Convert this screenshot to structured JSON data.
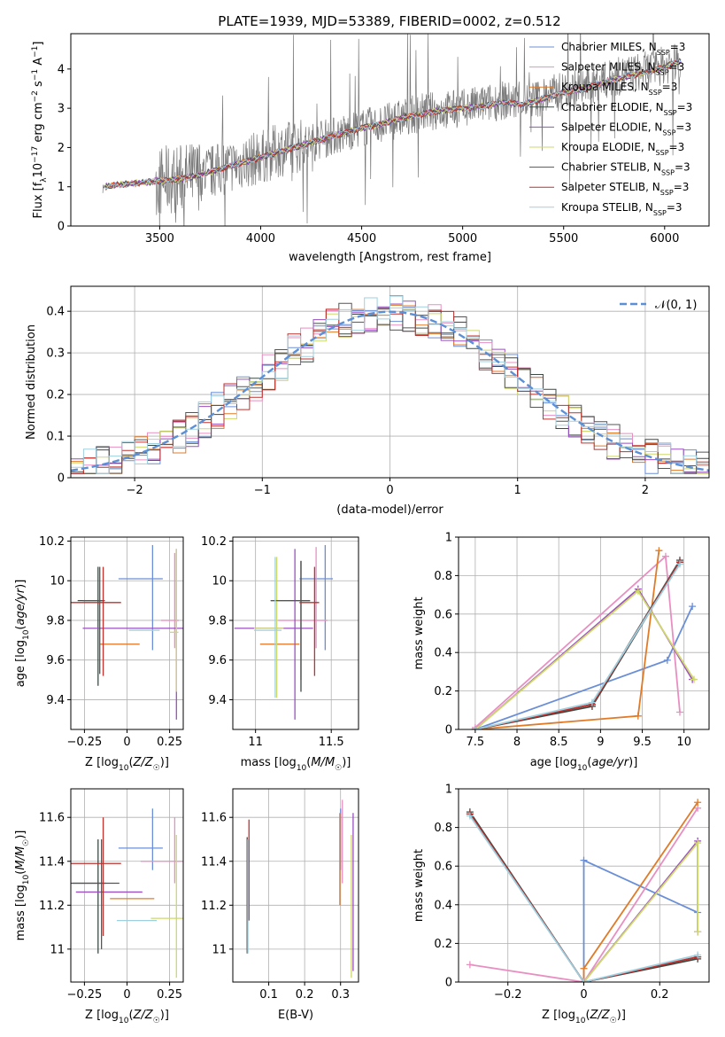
{
  "figure": {
    "title": "PLATE=1939, MJD=53389, FIBERID=0002, z=0.512",
    "series_colors": [
      "#6b8fd6",
      "#e88fc2",
      "#e07b28",
      "#3d4a44",
      "#9b4fc1",
      "#cfd86a",
      "#555555",
      "#c0302c",
      "#9fd0e0"
    ],
    "series_labels": [
      [
        "Chabrier MILES, N",
        "SSP",
        "=3"
      ],
      [
        "Salpeter MILES, N",
        "SSP",
        "=3"
      ],
      [
        "Kroupa MILES, N",
        "SSP",
        "=3"
      ],
      [
        "Chabrier ELODIE, N",
        "SSP",
        "=3"
      ],
      [
        "Salpeter ELODIE, N",
        "SSP",
        "=3"
      ],
      [
        "Kroupa ELODIE, N",
        "SSP",
        "=3"
      ],
      [
        "Chabrier STELIB, N",
        "SSP",
        "=3"
      ],
      [
        "Salpeter STELIB, N",
        "SSP",
        "=3"
      ],
      [
        "Kroupa STELIB, N",
        "SSP",
        "=3"
      ]
    ]
  },
  "chart_data": [
    {
      "id": "spectrum",
      "type": "line",
      "title": "PLATE=1939, MJD=53389, FIBERID=0002, z=0.512",
      "xlabel": "wavelength [Angstrom, rest frame]",
      "ylabel": "Flux [f_λ 10^-17 erg cm^-2 s^-1 A^-1]",
      "xlim": [
        3060,
        6220
      ],
      "ylim": [
        0,
        4.9
      ],
      "xticks": [
        3500,
        4000,
        4500,
        5000,
        5500,
        6000
      ],
      "yticks": [
        0,
        1,
        2,
        3,
        4
      ],
      "grid": false,
      "legend": "upper-right",
      "data_profile": {
        "x": [
          3200,
          3220,
          3300,
          3400,
          3500,
          3600,
          3700,
          3800,
          3900,
          4000,
          4100,
          4200,
          4300,
          4400,
          4500,
          4600,
          4700,
          4800,
          4900,
          5000,
          5100,
          5200,
          5300,
          5400,
          5500,
          5600,
          5700,
          5800,
          5900,
          6000,
          6080
        ],
        "y": [
          0,
          1.0,
          1.05,
          1.1,
          1.15,
          1.2,
          1.3,
          1.45,
          1.6,
          1.75,
          1.95,
          2.05,
          2.2,
          2.35,
          2.5,
          2.6,
          2.75,
          2.9,
          2.95,
          3.0,
          3.1,
          3.2,
          3.15,
          3.3,
          3.45,
          3.55,
          3.7,
          3.85,
          3.95,
          4.1,
          4.2
        ]
      },
      "model_profile": {
        "x": [
          3230,
          3300,
          3400,
          3500,
          3600,
          3700,
          3800,
          3900,
          4000,
          4100,
          4200,
          4300,
          4400,
          4500,
          4600,
          4700,
          4800,
          4900,
          5000,
          5100,
          5200,
          5300,
          5400,
          5500,
          5600,
          5700,
          5800,
          5900,
          6000,
          6080
        ],
        "y": [
          1.0,
          1.05,
          1.1,
          1.15,
          1.2,
          1.3,
          1.45,
          1.6,
          1.75,
          1.9,
          2.05,
          2.2,
          2.35,
          2.5,
          2.6,
          2.75,
          2.85,
          2.95,
          3.0,
          3.05,
          3.15,
          3.1,
          3.25,
          3.4,
          3.5,
          3.65,
          3.8,
          3.9,
          4.05,
          4.2
        ]
      }
    },
    {
      "id": "residuals",
      "type": "line",
      "xlabel": "(data-model)/error",
      "ylabel": "Normed distribution",
      "xlim": [
        -2.5,
        2.5
      ],
      "ylim": [
        0,
        0.46
      ],
      "xticks": [
        -2,
        -1,
        0,
        1,
        2
      ],
      "yticks": [
        0.0,
        0.1,
        0.2,
        0.3,
        0.4
      ],
      "grid": true,
      "legend": "upper-right",
      "reference_curve": {
        "name": "N(0,1)",
        "label_main": "𝒩(0, 1)",
        "mu": 0,
        "sigma": 1,
        "color": "#5b8fd6"
      },
      "histogram_bin_width": 0.1
    },
    {
      "id": "age-vs-Z",
      "type": "scatter",
      "xlabel": "Z [log10(Z/Z☉)]",
      "ylabel": "age [log10(age/yr)]",
      "xlim": [
        -0.33,
        0.33
      ],
      "ylim": [
        9.25,
        10.22
      ],
      "xticks": [
        -0.25,
        0.0,
        0.25
      ],
      "yticks": [
        9.4,
        9.6,
        9.8,
        10.0,
        10.2
      ],
      "grid": true,
      "points": [
        {
          "x": 0.15,
          "y": 10.01,
          "xerr": 0.2,
          "yerr": [
            0.36,
            0.17
          ]
        },
        {
          "x": 0.28,
          "y": 9.8,
          "xerr": 0.08,
          "yerr": [
            0.14,
            0.34
          ]
        },
        {
          "x": 0.02,
          "y": 9.68,
          "xerr": 0.18,
          "yerr": [
            0.0,
            0.0
          ]
        },
        {
          "x": -0.17,
          "y": 9.9,
          "xerr": 0.12,
          "yerr": [
            0.43,
            0.17
          ]
        },
        {
          "x": 0.29,
          "y": 9.76,
          "xerr": 0.55,
          "yerr": [
            0.46,
            0.4
          ]
        },
        {
          "x": 0.29,
          "y": 9.74,
          "xerr": 0.04,
          "yerr": [
            0.3,
            0.42
          ]
        },
        {
          "x": -0.16,
          "y": 9.9,
          "xerr": 0.1,
          "yerr": [
            0.37,
            0.17
          ]
        },
        {
          "x": -0.14,
          "y": 9.89,
          "xerr": 0.35,
          "yerr": [
            0.37,
            0.18
          ]
        },
        {
          "x": 0.15,
          "y": 9.75,
          "xerr": 0.14,
          "yerr": [
            0.0,
            0.0
          ]
        }
      ]
    },
    {
      "id": "age-vs-mass",
      "type": "scatter",
      "xlabel": "mass [log10(M/M☉)]",
      "ylabel": "",
      "xlim": [
        10.85,
        11.68
      ],
      "ylim": [
        9.25,
        10.22
      ],
      "xticks": [
        11.0,
        11.5
      ],
      "yticks": [
        9.4,
        9.6,
        9.8,
        10.0,
        10.2
      ],
      "grid": true,
      "points": [
        {
          "x": 11.46,
          "y": 10.01,
          "xerr": 0.17,
          "yerr": [
            0.36,
            0.17
          ]
        },
        {
          "x": 11.4,
          "y": 9.8,
          "xerr": 0.25,
          "yerr": [
            0.14,
            0.37
          ]
        },
        {
          "x": 11.23,
          "y": 9.68,
          "xerr": 0.2,
          "yerr": [
            0.0,
            0.0
          ]
        },
        {
          "x": 11.3,
          "y": 9.9,
          "xerr": 0.2,
          "yerr": [
            0.46,
            0.2
          ]
        },
        {
          "x": 11.26,
          "y": 9.76,
          "xerr": 0.4,
          "yerr": [
            0.46,
            0.4
          ]
        },
        {
          "x": 11.14,
          "y": 9.76,
          "xerr": 0.15,
          "yerr": [
            0.35,
            0.36
          ]
        },
        {
          "x": 11.3,
          "y": 9.9,
          "xerr": 0.2,
          "yerr": [
            0.4,
            0.2
          ]
        },
        {
          "x": 11.39,
          "y": 9.89,
          "xerr": 0.1,
          "yerr": [
            0.37,
            0.18
          ]
        },
        {
          "x": 11.13,
          "y": 9.75,
          "xerr": 0.14,
          "yerr": [
            0.34,
            0.37
          ]
        }
      ]
    },
    {
      "id": "weight-vs-age",
      "type": "line",
      "xlabel": "age [log10(age/yr)]",
      "ylabel": "mass weight",
      "xlim": [
        7.3,
        10.3
      ],
      "ylim": [
        0,
        1.0
      ],
      "xticks": [
        7.5,
        8.0,
        8.5,
        9.0,
        9.5,
        10.0
      ],
      "yticks": [
        0.0,
        0.2,
        0.4,
        0.6,
        0.8,
        1.0
      ],
      "grid": true,
      "series": [
        {
          "x": [
            7.5,
            9.8,
            10.1
          ],
          "y": [
            0.0,
            0.36,
            0.64
          ]
        },
        {
          "x": [
            7.5,
            9.78,
            9.95
          ],
          "y": [
            0.01,
            0.9,
            0.09
          ]
        },
        {
          "x": [
            7.5,
            9.45,
            9.7
          ],
          "y": [
            0.0,
            0.07,
            0.93
          ]
        },
        {
          "x": [
            7.5,
            8.9,
            9.95
          ],
          "y": [
            0.0,
            0.12,
            0.87
          ]
        },
        {
          "x": [
            7.5,
            9.45,
            10.1
          ],
          "y": [
            0.0,
            0.73,
            0.26
          ]
        },
        {
          "x": [
            7.5,
            9.45,
            10.12
          ],
          "y": [
            0.0,
            0.72,
            0.26
          ]
        },
        {
          "x": [
            7.5,
            8.9,
            9.95
          ],
          "y": [
            0.0,
            0.13,
            0.88
          ]
        },
        {
          "x": [
            7.5,
            8.9,
            9.95
          ],
          "y": [
            0.0,
            0.13,
            0.87
          ]
        },
        {
          "x": [
            7.5,
            8.9,
            9.95
          ],
          "y": [
            0.0,
            0.14,
            0.86
          ]
        }
      ]
    },
    {
      "id": "mass-vs-Z",
      "type": "scatter",
      "xlabel": "Z [log10(Z/Z☉)]",
      "ylabel": "mass [log10(M/M☉)]",
      "xlim": [
        -0.33,
        0.33
      ],
      "ylim": [
        10.85,
        11.73
      ],
      "xticks": [
        -0.25,
        0.0,
        0.25
      ],
      "yticks": [
        11.0,
        11.2,
        11.4,
        11.6
      ],
      "grid": true,
      "points": [
        {
          "x": 0.15,
          "y": 11.46,
          "xerr": 0.2,
          "yerr": [
            0.1,
            0.18
          ]
        },
        {
          "x": 0.28,
          "y": 11.4,
          "xerr": 0.2,
          "yerr": [
            0.1,
            0.2
          ]
        },
        {
          "x": 0.1,
          "y": 11.23,
          "xerr": 0.2,
          "yerr": [
            0.0,
            0.0
          ]
        },
        {
          "x": -0.17,
          "y": 11.3,
          "xerr": 0.15,
          "yerr": [
            0.32,
            0.2
          ]
        },
        {
          "x": 0.0,
          "y": 11.26,
          "xerr": 0.3,
          "yerr": [
            0.0,
            0.0
          ]
        },
        {
          "x": 0.29,
          "y": 11.14,
          "xerr": 0.15,
          "yerr": [
            0.27,
            0.38
          ]
        },
        {
          "x": -0.15,
          "y": 11.3,
          "xerr": 0.35,
          "yerr": [
            0.3,
            0.2
          ]
        },
        {
          "x": -0.14,
          "y": 11.39,
          "xerr": 0.35,
          "yerr": [
            0.33,
            0.21
          ]
        },
        {
          "x": 0.12,
          "y": 11.13,
          "xerr": 0.18,
          "yerr": [
            0.0,
            0.0
          ]
        }
      ]
    },
    {
      "id": "mass-vs-ebv",
      "type": "scatter",
      "xlabel": "E(B-V)",
      "ylabel": "",
      "xlim": [
        0.0,
        0.35
      ],
      "ylim": [
        10.85,
        11.73
      ],
      "xticks": [
        0.1,
        0.2,
        0.3
      ],
      "yticks": [
        11.0,
        11.2,
        11.4,
        11.6
      ],
      "grid": true,
      "points": [
        {
          "x": 0.3,
          "y": 11.46,
          "xerr": 0.0,
          "yerr": [
            0.1,
            0.18
          ]
        },
        {
          "x": 0.305,
          "y": 11.4,
          "xerr": 0.0,
          "yerr": [
            0.1,
            0.28
          ]
        },
        {
          "x": 0.298,
          "y": 11.37,
          "xerr": 0.0,
          "yerr": [
            0.17,
            0.25
          ]
        },
        {
          "x": 0.04,
          "y": 11.3,
          "xerr": 0.0,
          "yerr": [
            0.32,
            0.21
          ]
        },
        {
          "x": 0.335,
          "y": 11.26,
          "xerr": 0.0,
          "yerr": [
            0.36,
            0.36
          ]
        },
        {
          "x": 0.33,
          "y": 11.14,
          "xerr": 0.0,
          "yerr": [
            0.27,
            0.38
          ]
        },
        {
          "x": 0.04,
          "y": 11.3,
          "xerr": 0.0,
          "yerr": [
            0.3,
            0.2
          ]
        },
        {
          "x": 0.045,
          "y": 11.39,
          "xerr": 0.0,
          "yerr": [
            0.26,
            0.2
          ]
        },
        {
          "x": 0.042,
          "y": 11.3,
          "xerr": 0.0,
          "yerr": [
            0.32,
            0.2
          ]
        }
      ]
    },
    {
      "id": "weight-vs-Z",
      "type": "line",
      "xlabel": "Z [log10(Z/Z☉)]",
      "ylabel": "mass weight",
      "xlim": [
        -0.33,
        0.33
      ],
      "ylim": [
        0,
        1.0
      ],
      "xticks": [
        -0.2,
        0.0,
        0.2
      ],
      "yticks": [
        0.0,
        0.2,
        0.4,
        0.6,
        0.8,
        1.0
      ],
      "grid": true,
      "series": [
        {
          "x": [
            0.0,
            0.0,
            0.3
          ],
          "y": [
            0.0,
            0.63,
            0.36
          ]
        },
        {
          "x": [
            -0.3,
            0.0,
            0.3
          ],
          "y": [
            0.09,
            0.0,
            0.9
          ]
        },
        {
          "x": [
            0.0,
            0.0,
            0.3
          ],
          "y": [
            0.0,
            0.07,
            0.93
          ]
        },
        {
          "x": [
            -0.3,
            0.0,
            0.3
          ],
          "y": [
            0.88,
            0.0,
            0.12
          ]
        },
        {
          "x": [
            0.0,
            0.3,
            0.3
          ],
          "y": [
            0.0,
            0.73,
            0.26
          ]
        },
        {
          "x": [
            0.0,
            0.3,
            0.3
          ],
          "y": [
            0.0,
            0.72,
            0.26
          ]
        },
        {
          "x": [
            -0.3,
            0.0,
            0.3
          ],
          "y": [
            0.87,
            0.0,
            0.13
          ]
        },
        {
          "x": [
            -0.3,
            0.0,
            0.3
          ],
          "y": [
            0.87,
            0.0,
            0.13
          ]
        },
        {
          "x": [
            -0.3,
            0.0,
            0.3
          ],
          "y": [
            0.86,
            0.0,
            0.14
          ]
        }
      ]
    }
  ]
}
